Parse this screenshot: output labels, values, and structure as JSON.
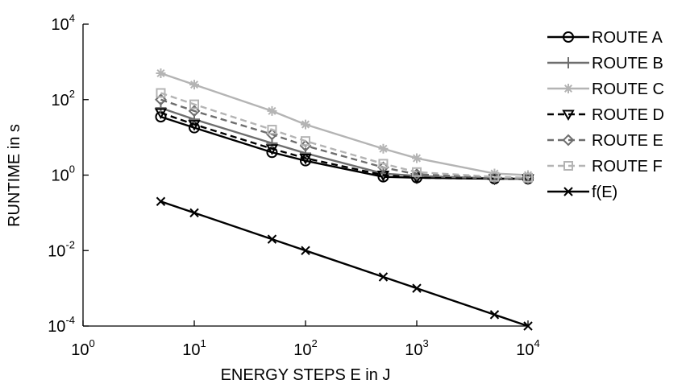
{
  "chart_data": {
    "type": "line",
    "title": "",
    "xlabel": "ENERGY STEPS E in J",
    "ylabel": "RUNTIME in s",
    "xscale": "log",
    "yscale": "log",
    "xlim": [
      1,
      10000
    ],
    "ylim": [
      0.0001,
      10000
    ],
    "grid": false,
    "legend_position": "right",
    "x_ticks": [
      {
        "base": "10",
        "exp": "0",
        "value": 1
      },
      {
        "base": "10",
        "exp": "1",
        "value": 10
      },
      {
        "base": "10",
        "exp": "2",
        "value": 100
      },
      {
        "base": "10",
        "exp": "3",
        "value": 1000
      },
      {
        "base": "10",
        "exp": "4",
        "value": 10000
      }
    ],
    "y_ticks": [
      {
        "base": "10",
        "exp": "-4",
        "value": 0.0001
      },
      {
        "base": "10",
        "exp": "-2",
        "value": 0.01
      },
      {
        "base": "10",
        "exp": "0",
        "value": 1
      },
      {
        "base": "10",
        "exp": "2",
        "value": 100
      },
      {
        "base": "10",
        "exp": "4",
        "value": 10000
      }
    ],
    "x": [
      5,
      10,
      50,
      100,
      500,
      1000,
      5000,
      10000
    ],
    "series": [
      {
        "name": "ROUTE A",
        "color": "#000000",
        "dash": "solid",
        "marker": "circle",
        "values": [
          35,
          18,
          4,
          2.4,
          0.9,
          0.85,
          0.8,
          0.8
        ]
      },
      {
        "name": "ROUTE B",
        "color": "#6e6e6e",
        "dash": "solid",
        "marker": "plus",
        "values": [
          60,
          30,
          7,
          3.8,
          1.1,
          0.95,
          0.82,
          0.8
        ]
      },
      {
        "name": "ROUTE C",
        "color": "#b4b4b4",
        "dash": "solid",
        "marker": "star",
        "values": [
          500,
          250,
          50,
          22,
          5,
          2.8,
          1.1,
          1.0
        ]
      },
      {
        "name": "ROUTE D",
        "color": "#000000",
        "dash": "dashed",
        "marker": "triangle-down",
        "values": [
          45,
          22,
          5,
          2.8,
          1.0,
          0.85,
          0.8,
          0.8
        ]
      },
      {
        "name": "ROUTE E",
        "color": "#6e6e6e",
        "dash": "dashed",
        "marker": "diamond",
        "values": [
          100,
          50,
          12,
          6,
          1.6,
          1.05,
          0.85,
          0.82
        ]
      },
      {
        "name": "ROUTE F",
        "color": "#b4b4b4",
        "dash": "dashed",
        "marker": "square",
        "values": [
          150,
          75,
          16,
          8,
          2,
          1.2,
          0.9,
          0.85
        ]
      },
      {
        "name": "f(E)",
        "color": "#000000",
        "dash": "solid",
        "marker": "x",
        "values": [
          0.2,
          0.1,
          0.02,
          0.01,
          0.002,
          0.001,
          0.0002,
          0.0001
        ]
      }
    ]
  }
}
